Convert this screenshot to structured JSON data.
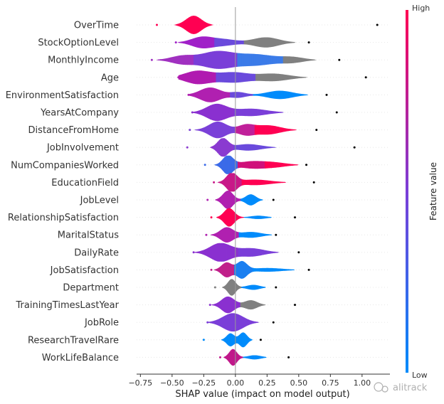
{
  "chart_data": {
    "type": "violin",
    "xlabel": "SHAP value (impact on model output)",
    "xlim": [
      -0.78,
      1.22
    ],
    "xticks": [
      -0.75,
      -0.5,
      -0.25,
      0.0,
      0.25,
      0.5,
      0.75,
      1.0
    ],
    "xtick_labels": [
      "−0.75",
      "−0.50",
      "−0.25",
      "0.00",
      "0.25",
      "0.50",
      "0.75",
      "1.00"
    ],
    "colorbar": {
      "title": "Feature value",
      "high_label": "High",
      "low_label": "Low",
      "high_color": "#ff0052",
      "low_color": "#008bfb",
      "mid_color": "#7a3ed8"
    },
    "features": [
      {
        "name": "OverTime",
        "min": -0.62,
        "max": 1.12,
        "peaks": [
          [
            -0.33,
            0.06,
            1.0,
            "#ff0052"
          ]
        ],
        "pts": [
          [
            0.3,
            1.12,
            "#008bfb"
          ]
        ],
        "hp": 0.5
      },
      {
        "name": "StockOptionLevel",
        "min": -0.47,
        "max": 0.58,
        "peaks": [
          [
            -0.27,
            0.08,
            0.55,
            "#a020c8"
          ],
          [
            -0.1,
            0.1,
            0.35,
            "#6a4adc"
          ],
          [
            0.24,
            0.1,
            0.55,
            "#808080"
          ]
        ],
        "pts": [
          [
            0.42,
            0.58,
            "#008bfb"
          ]
        ],
        "hp": 0.5
      },
      {
        "name": "MonthlyIncome",
        "min": -0.66,
        "max": 0.82,
        "peaks": [
          [
            -0.42,
            0.09,
            0.4,
            "#a030c0"
          ],
          [
            -0.15,
            0.12,
            0.8,
            "#7a3ed8"
          ],
          [
            0.15,
            0.15,
            0.55,
            "#3b7be8"
          ],
          [
            0.45,
            0.09,
            0.25,
            "#808080"
          ]
        ],
        "pts": [
          [
            0.5,
            0.82,
            "#808080"
          ]
        ],
        "hp": 0.55
      },
      {
        "name": "Age",
        "min": -0.45,
        "max": 1.03,
        "peaks": [
          [
            -0.3,
            0.1,
            0.7,
            "#b01ab0"
          ],
          [
            -0.02,
            0.12,
            0.55,
            "#6a4adc"
          ],
          [
            0.3,
            0.12,
            0.4,
            "#808080"
          ]
        ],
        "pts": [
          [
            0.4,
            1.03,
            "#808080"
          ]
        ],
        "hp": 0.5
      },
      {
        "name": "EnvironmentSatisfaction",
        "min": -0.37,
        "max": 0.72,
        "peaks": [
          [
            -0.2,
            0.08,
            0.8,
            "#b020b0"
          ],
          [
            0.02,
            0.06,
            0.3,
            "#6a4adc"
          ],
          [
            0.35,
            0.1,
            0.45,
            "#008bfb"
          ]
        ],
        "pts": [
          [
            0.55,
            0.72,
            "#008bfb"
          ]
        ],
        "hp": 0.5
      },
      {
        "name": "YearsAtCompany",
        "min": -0.34,
        "max": 0.8,
        "peaks": [
          [
            -0.15,
            0.08,
            0.9,
            "#8a30d0"
          ],
          [
            0.12,
            0.12,
            0.4,
            "#7a3ed8"
          ]
        ],
        "pts": [
          [
            0.4,
            0.8,
            "#8a3ad0"
          ]
        ],
        "hp": 0.5
      },
      {
        "name": "DistanceFromHome",
        "min": -0.36,
        "max": 0.64,
        "peaks": [
          [
            -0.14,
            0.07,
            0.9,
            "#7a40d8"
          ],
          [
            0.08,
            0.06,
            0.5,
            "#c0209a"
          ],
          [
            0.25,
            0.1,
            0.5,
            "#ff0052"
          ]
        ],
        "pts": [
          [
            0.4,
            0.64,
            "#ff0052"
          ]
        ],
        "hp": 0.5
      },
      {
        "name": "JobInvolvement",
        "min": -0.38,
        "max": 0.94,
        "peaks": [
          [
            -0.1,
            0.04,
            1.0,
            "#8a3ad0"
          ],
          [
            0.1,
            0.1,
            0.35,
            "#6a4adc"
          ]
        ],
        "pts": [
          [
            0.3,
            0.94,
            "#008bfb"
          ]
        ],
        "hp": 0.5
      },
      {
        "name": "NumCompaniesWorked",
        "min": -0.24,
        "max": 0.56,
        "peaks": [
          [
            -0.06,
            0.04,
            1.0,
            "#3b6ae8"
          ],
          [
            0.12,
            0.1,
            0.35,
            "#d0107a"
          ],
          [
            0.3,
            0.1,
            0.25,
            "#ff0052"
          ]
        ],
        "pts": [
          [
            0.42,
            0.56,
            "#c0207a"
          ]
        ],
        "hp": 0.5
      },
      {
        "name": "EducationField",
        "min": -0.17,
        "max": 0.62,
        "peaks": [
          [
            -0.03,
            0.04,
            1.0,
            "#c81888"
          ],
          [
            0.15,
            0.12,
            0.3,
            "#ff0052"
          ]
        ],
        "pts": [
          [
            0.4,
            0.62,
            "#ff0052"
          ]
        ],
        "hp": 0.5
      },
      {
        "name": "JobLevel",
        "min": -0.22,
        "max": 0.3,
        "peaks": [
          [
            -0.06,
            0.04,
            1.0,
            "#b020b0"
          ],
          [
            0.12,
            0.04,
            0.6,
            "#008bfb"
          ]
        ],
        "pts": [
          [
            0.18,
            0.3,
            "#008bfb"
          ]
        ],
        "hp": 0.5
      },
      {
        "name": "RelationshipSatisfaction",
        "min": -0.19,
        "max": 0.47,
        "peaks": [
          [
            -0.05,
            0.04,
            1.0,
            "#ff0052"
          ],
          [
            0.18,
            0.06,
            0.18,
            "#008bfb"
          ]
        ],
        "pts": [
          [
            0.25,
            0.47,
            "#008bfb"
          ]
        ],
        "hp": 0.5
      },
      {
        "name": "MaritalStatus",
        "min": -0.23,
        "max": 0.32,
        "peaks": [
          [
            -0.07,
            0.05,
            0.9,
            "#b020b0"
          ],
          [
            0.12,
            0.08,
            0.35,
            "#008bfb"
          ]
        ],
        "pts": [
          [
            0.2,
            0.32,
            "#008bfb"
          ]
        ],
        "hp": 0.45
      },
      {
        "name": "DailyRate",
        "min": -0.33,
        "max": 0.5,
        "peaks": [
          [
            -0.12,
            0.08,
            1.0,
            "#8a30d0"
          ],
          [
            0.12,
            0.1,
            0.45,
            "#7a3ed8"
          ]
        ],
        "pts": [
          [
            0.3,
            0.5,
            "#8a3ad0"
          ]
        ],
        "hp": 0.5
      },
      {
        "name": "JobSatisfaction",
        "min": -0.19,
        "max": 0.58,
        "peaks": [
          [
            -0.07,
            0.04,
            0.8,
            "#c0208a"
          ],
          [
            0.05,
            0.04,
            0.9,
            "#1a7ff0"
          ],
          [
            0.25,
            0.12,
            0.2,
            "#008bfb"
          ]
        ],
        "pts": [
          [
            0.32,
            0.58,
            "#008bfb"
          ]
        ],
        "hp": 0.5
      },
      {
        "name": "Department",
        "min": -0.16,
        "max": 0.32,
        "peaks": [
          [
            -0.03,
            0.03,
            1.0,
            "#808080"
          ],
          [
            0.14,
            0.05,
            0.3,
            "#008bfb"
          ]
        ],
        "pts": [
          [
            0.2,
            0.32,
            "#008bfb"
          ]
        ],
        "hp": 0.45
      },
      {
        "name": "TrainingTimesLastYear",
        "min": -0.2,
        "max": 0.47,
        "peaks": [
          [
            -0.06,
            0.05,
            0.9,
            "#8a30d0"
          ],
          [
            0.12,
            0.05,
            0.5,
            "#808080"
          ]
        ],
        "pts": [
          [
            0.25,
            0.47,
            "#808080"
          ]
        ],
        "hp": 0.5
      },
      {
        "name": "JobRole",
        "min": -0.22,
        "max": 0.3,
        "peaks": [
          [
            -0.02,
            0.08,
            0.9,
            "#7a3ed8"
          ]
        ],
        "pts": [
          [
            0.12,
            0.3,
            "#7a3ed8"
          ]
        ],
        "hp": 0.55
      },
      {
        "name": "ResearchTravelRare",
        "min": -0.25,
        "max": 0.2,
        "peaks": [
          [
            -0.04,
            0.03,
            0.7,
            "#008bfb"
          ],
          [
            0.06,
            0.03,
            0.8,
            "#008bfb"
          ]
        ],
        "pts": [
          [
            0.1,
            0.2,
            "#008bfb"
          ]
        ],
        "hp": 0.5
      },
      {
        "name": "WorkLifeBalance",
        "min": -0.12,
        "max": 0.42,
        "peaks": [
          [
            -0.02,
            0.03,
            1.0,
            "#c0188a"
          ],
          [
            0.15,
            0.05,
            0.25,
            "#008bfb"
          ]
        ],
        "pts": [
          [
            0.2,
            0.42,
            "#008bfb"
          ]
        ],
        "hp": 0.45
      }
    ]
  },
  "watermark": "alitrack"
}
